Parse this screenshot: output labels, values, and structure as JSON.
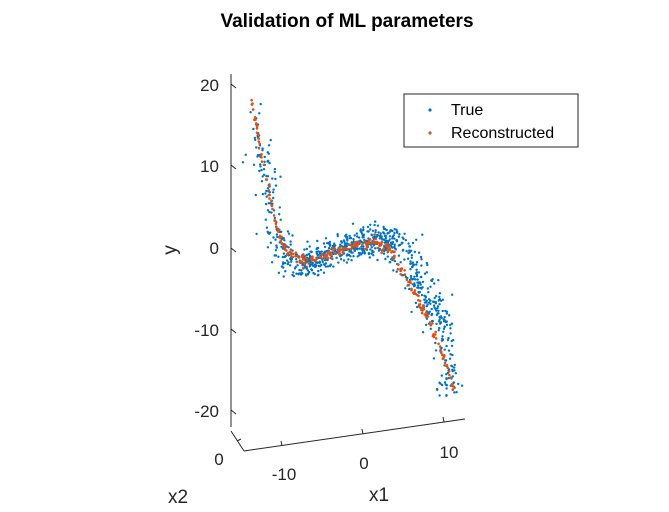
{
  "chart_data": {
    "type": "scatter",
    "title": "Validation of ML parameters",
    "xlabel": "x1",
    "ylabel": "y",
    "zlabel": "x2",
    "ylim": [
      -20,
      20
    ],
    "x1_ticks": [
      "-10",
      "0",
      "10"
    ],
    "x2_ticks": [
      "0"
    ],
    "y_ticks": [
      "20",
      "10",
      "0",
      "-10",
      "-20"
    ],
    "legend_position": "top-right",
    "series": [
      {
        "name": "True",
        "color": "#0072BD",
        "description": "noisy samples of a cubic-shaped curve",
        "x": [
          -13.5,
          -13.0,
          -12.5,
          -12.0,
          -11.5,
          -11.0,
          -10.5,
          -10.0,
          -9.0,
          -8.0,
          -7.0,
          -6.0,
          -5.0,
          -4.0,
          -3.0,
          -2.0,
          -1.0,
          0.0,
          1.0,
          2.0,
          3.0,
          4.0,
          5.0,
          6.0,
          7.0,
          8.0,
          9.0,
          10.0,
          10.5,
          11.0,
          11.5
        ],
        "y": [
          17.5,
          14.5,
          12.0,
          10.0,
          8.0,
          6.0,
          4.0,
          2.0,
          0.5,
          -1.0,
          -0.8,
          -0.4,
          0.0,
          0.2,
          0.4,
          0.6,
          0.8,
          1.0,
          1.1,
          1.0,
          0.7,
          0.3,
          -0.5,
          -3.0,
          -5.0,
          -7.0,
          -9.5,
          -12.0,
          -14.5,
          -16.5,
          -18.5
        ],
        "spread": 2.5
      },
      {
        "name": "Reconstructed",
        "color": "#D95319",
        "description": "fitted curve",
        "x": [
          -14.0,
          -13.5,
          -13.0,
          -12.5,
          -12.0,
          -11.5,
          -11.0,
          -10.5,
          -10.0,
          -9.0,
          -8.0,
          -7.0,
          -6.0,
          -5.0,
          -4.0,
          -3.0,
          -2.0,
          -1.0,
          0.0,
          1.0,
          2.0,
          3.0,
          4.0,
          5.0,
          6.0,
          7.0,
          8.0,
          9.0,
          10.0,
          10.5,
          11.0,
          11.5
        ],
        "y": [
          21.0,
          18.0,
          15.0,
          12.5,
          10.0,
          7.5,
          5.5,
          3.5,
          2.0,
          1.0,
          0.0,
          -0.5,
          -0.3,
          0.0,
          0.2,
          0.4,
          0.6,
          0.8,
          0.9,
          0.9,
          0.5,
          0.0,
          -1.5,
          -3.5,
          -5.5,
          -7.5,
          -9.5,
          -12.0,
          -14.5,
          -16.0,
          -17.5,
          -19.5
        ]
      }
    ]
  }
}
